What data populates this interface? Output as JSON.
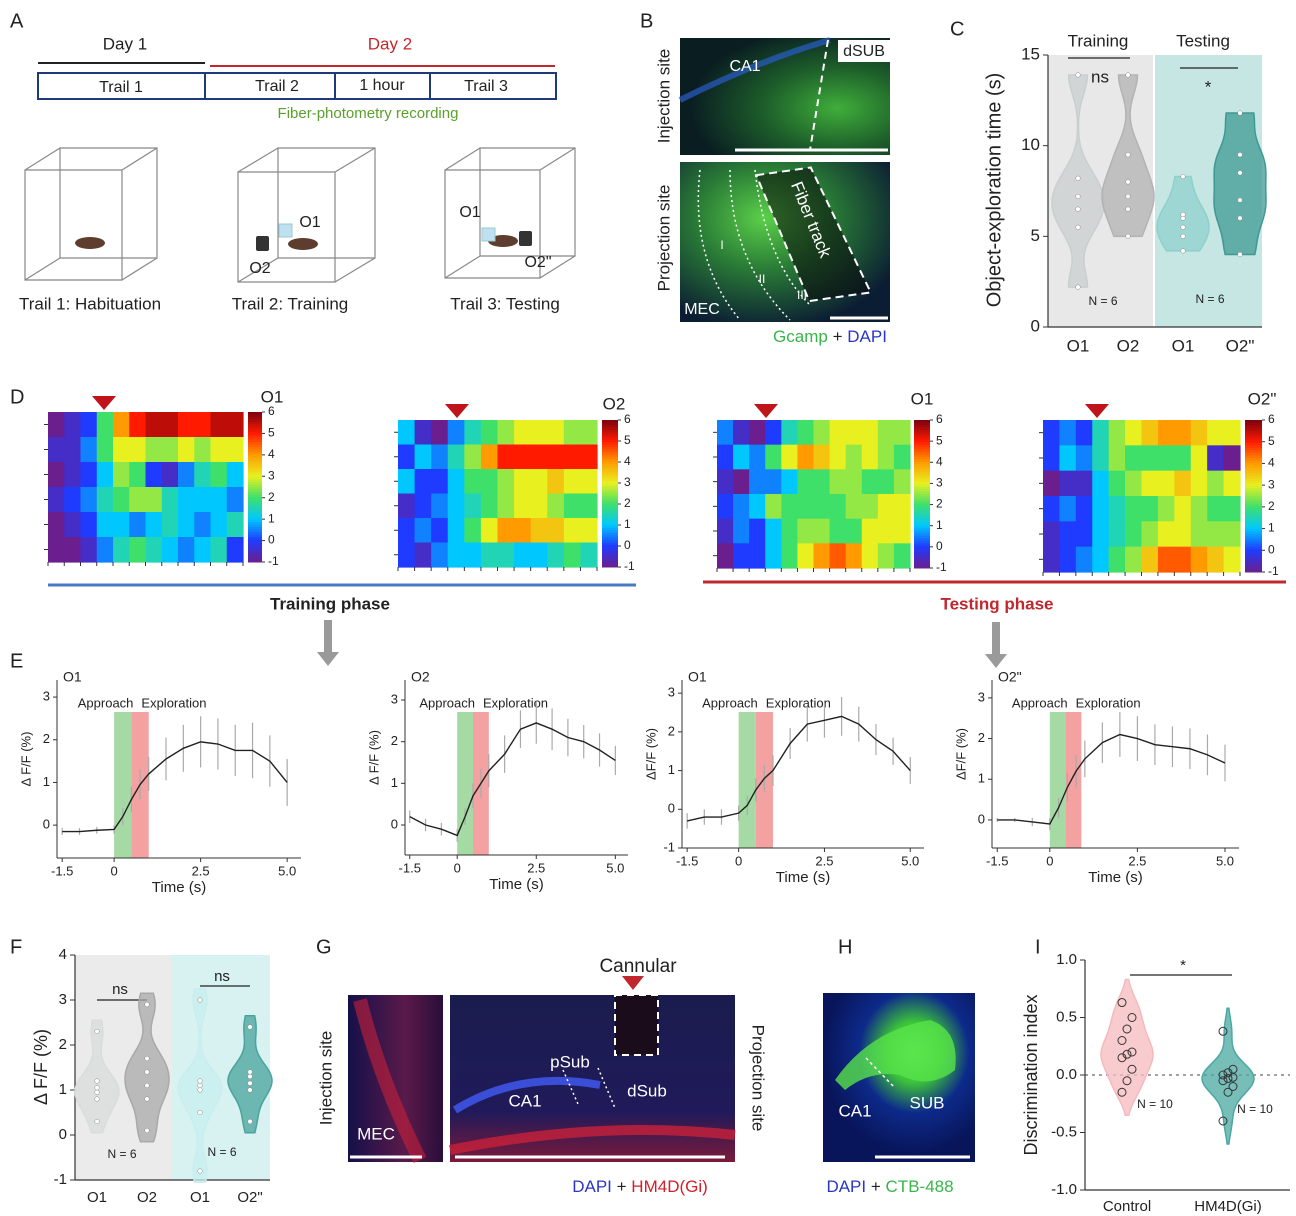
{
  "panel_letters": [
    "A",
    "B",
    "C",
    "D",
    "E",
    "F",
    "G",
    "H",
    "I"
  ],
  "panel_a": {
    "days": [
      "Day 1",
      "Day 2"
    ],
    "trials": [
      "Trail 1",
      "Trail 2",
      "1 hour",
      "Trail 3"
    ],
    "recording": "Fiber-photometry recording",
    "captions": [
      "Trail 1: Habituation",
      "Trail 2: Training",
      "Trail 3: Testing"
    ],
    "objects": [
      "O1",
      "O2",
      "O1",
      "O2\""
    ]
  },
  "panel_b": {
    "sites": [
      "Injection site",
      "Projection site"
    ],
    "regions": [
      "CA1",
      "dSUB",
      "Fiber track",
      "MEC",
      "I",
      "II",
      "III"
    ],
    "stain": [
      "Gcamp",
      "+",
      "DAPI"
    ]
  },
  "panel_d": {
    "phases": [
      "Training phase",
      "Testing phase"
    ]
  },
  "panel_g": {
    "cannula": "Cannular",
    "sites": [
      "Injection site",
      "Projection site"
    ],
    "regions": [
      "pSub",
      "CA1",
      "dSub",
      "MEC"
    ],
    "stain": [
      "DAPI",
      "+",
      "HM4D(Gi)"
    ]
  },
  "panel_h": {
    "regions": [
      "CA1",
      "SUB"
    ],
    "stain": [
      "DAPI",
      "+",
      "CTB-488"
    ]
  },
  "chart_data": [
    {
      "type": "violin",
      "ylabel": "Object-exploration time (s)",
      "groups": [
        "Training",
        "Testing"
      ],
      "categories": [
        "O1",
        "O2",
        "O1",
        "O2\""
      ],
      "values": [
        [
          2.2,
          5.5,
          6.5,
          7.2,
          8.2,
          13.9
        ],
        [
          5.0,
          6.5,
          7.2,
          8.0,
          9.5,
          13.9
        ],
        [
          4.2,
          5.0,
          5.5,
          6.0,
          6.2,
          8.3
        ],
        [
          4.0,
          6.0,
          7.0,
          8.5,
          9.5,
          11.8
        ]
      ],
      "colors": [
        "#c9cfcf",
        "#b3b3b3",
        "#8fd0cc",
        "#3f9993"
      ],
      "ylim": [
        0,
        15
      ],
      "yticks": [
        0,
        5,
        10,
        15
      ],
      "annotations": [
        "ns",
        "*"
      ],
      "n_labels": [
        "N = 6",
        "N = 6"
      ]
    },
    {
      "type": "heatmap",
      "title": "O1",
      "zlim": [
        -1,
        6
      ],
      "zticks": [
        -1,
        0,
        1,
        2,
        3,
        4,
        5,
        6
      ],
      "z": [
        [
          -1,
          -0.5,
          0,
          2,
          4,
          5,
          5.5,
          5.5,
          5,
          5,
          5.5,
          5.5
        ],
        [
          -0.5,
          -0.5,
          0.5,
          2,
          3,
          3,
          2.5,
          2.5,
          3,
          2.5,
          3,
          3
        ],
        [
          -1,
          -0.5,
          0,
          1,
          2.5,
          2,
          0,
          -0.5,
          0.5,
          1.5,
          2,
          1
        ],
        [
          -0.5,
          0,
          0.5,
          1.5,
          2,
          2.5,
          2.5,
          1.5,
          1,
          1,
          1,
          0.5
        ],
        [
          -1,
          -0.5,
          0,
          1,
          1,
          0.5,
          1,
          1.5,
          1,
          0.5,
          1,
          1.5
        ],
        [
          -1,
          -1,
          -0.5,
          0.5,
          1.5,
          2,
          1.5,
          1,
          0.5,
          1,
          1.5,
          0
        ]
      ]
    },
    {
      "type": "heatmap",
      "title": "O2",
      "zlim": [
        -1,
        6
      ],
      "zticks": [
        -1,
        0,
        1,
        2,
        3,
        4,
        5,
        6
      ],
      "z": [
        [
          1,
          -0.5,
          -1,
          0.5,
          1.5,
          2,
          2.5,
          3,
          3,
          3,
          2.5,
          2.5
        ],
        [
          0,
          1,
          0.5,
          1.5,
          2.5,
          4,
          5,
          5,
          5,
          5,
          5,
          5
        ],
        [
          1,
          0,
          0,
          1,
          2,
          2,
          2.5,
          3,
          3,
          3.5,
          3,
          3
        ],
        [
          -0.5,
          0,
          0.5,
          1,
          1.5,
          2,
          2.5,
          3,
          3,
          2.5,
          2,
          2
        ],
        [
          0,
          0.5,
          0,
          1,
          2,
          3,
          4,
          4,
          3.5,
          3.5,
          3,
          3
        ],
        [
          0,
          -0.5,
          0.5,
          1,
          1,
          1.5,
          1.5,
          1,
          1,
          1.5,
          2,
          1.5
        ]
      ]
    },
    {
      "type": "heatmap",
      "title": "O1",
      "zlim": [
        -1,
        6
      ],
      "zticks": [
        -1,
        0,
        1,
        2,
        3,
        4,
        5,
        6
      ],
      "z": [
        [
          0.5,
          -0.5,
          -1,
          0,
          1.5,
          2,
          2.5,
          3,
          3,
          3,
          2.5,
          2.5
        ],
        [
          0,
          1,
          0.5,
          2,
          3,
          4,
          3.5,
          3,
          2.5,
          3,
          2.5,
          2
        ],
        [
          -0.5,
          -1,
          0.5,
          0.5,
          1,
          2,
          2,
          2.5,
          2.5,
          2,
          2,
          2.5
        ],
        [
          0,
          0.5,
          1,
          2.5,
          2,
          2,
          2,
          2,
          2.5,
          2.5,
          3,
          3
        ],
        [
          -0.5,
          0.5,
          0,
          1,
          2,
          2.5,
          2.5,
          2,
          2,
          3,
          3,
          3
        ],
        [
          -1,
          0,
          0,
          1,
          2,
          3,
          4,
          4.5,
          4,
          3,
          2.5,
          2
        ]
      ]
    },
    {
      "type": "heatmap",
      "title": "O2\"",
      "zlim": [
        -1,
        6
      ],
      "zticks": [
        -1,
        0,
        1,
        2,
        3,
        4,
        5,
        6
      ],
      "z": [
        [
          0,
          0.5,
          0,
          1.5,
          2.5,
          3,
          3.5,
          4,
          4,
          3.5,
          3,
          3
        ],
        [
          0,
          1,
          0.5,
          1.5,
          2.5,
          2,
          2,
          2,
          2,
          3,
          -0.5,
          -1
        ],
        [
          -1,
          -0.5,
          -0.5,
          1,
          2,
          2.5,
          3,
          3,
          3.5,
          3,
          2.5,
          3
        ],
        [
          0,
          0.5,
          0,
          1,
          1.5,
          2,
          2,
          2.5,
          3,
          2.5,
          2,
          2
        ],
        [
          -0.5,
          0,
          0,
          1,
          1.5,
          2,
          2.5,
          3,
          3,
          2.5,
          2.5,
          2.5
        ],
        [
          -0.5,
          0,
          0.5,
          1,
          2,
          2.5,
          3.5,
          4.5,
          4.5,
          4,
          3.5,
          3
        ]
      ]
    },
    {
      "type": "line",
      "title": "O1",
      "xlabel": "Time (s)",
      "ylabel": "Δ F/F (%)",
      "color": "#222222",
      "error_color": "#aaaaaa",
      "x": [
        -1.5,
        -1,
        -0.5,
        0,
        0.25,
        0.5,
        0.75,
        1,
        1.5,
        2,
        2.5,
        3,
        3.5,
        4,
        4.5,
        5
      ],
      "values": [
        -0.15,
        -0.15,
        -0.12,
        -0.1,
        0.2,
        0.6,
        0.95,
        1.2,
        1.55,
        1.8,
        1.95,
        1.9,
        1.75,
        1.75,
        1.5,
        1.0
      ],
      "errors": [
        0.08,
        0.08,
        0.08,
        0.1,
        0.2,
        0.3,
        0.35,
        0.4,
        0.5,
        0.55,
        0.6,
        0.6,
        0.6,
        0.65,
        0.6,
        0.55
      ],
      "spans": [
        {
          "name": "Approach",
          "range": [
            0,
            0.5
          ],
          "color": "#8fd18f"
        },
        {
          "name": "Exploration",
          "range": [
            0.5,
            1.0
          ],
          "color": "#f08a8a"
        }
      ],
      "xlim": [
        -1.65,
        5.4
      ],
      "xticks": [
        -1.5,
        0,
        2.5,
        {
          "value": 5,
          "label": "5.0"
        }
      ],
      "ylim": [
        -0.77,
        3.4
      ],
      "yticks": [
        0,
        1,
        2,
        3
      ]
    },
    {
      "type": "line",
      "title": "O2",
      "xlabel": "Time (s)",
      "ylabel": "Δ F/F (%)",
      "color": "#222222",
      "error_color": "#aaaaaa",
      "x": [
        -1.5,
        -1,
        -0.5,
        0,
        0.25,
        0.5,
        0.75,
        1,
        1.5,
        2,
        2.5,
        3,
        3.5,
        4,
        4.5,
        5
      ],
      "values": [
        0.2,
        0.0,
        -0.1,
        -0.25,
        0.2,
        0.7,
        1.0,
        1.3,
        1.7,
        2.3,
        2.45,
        2.3,
        2.1,
        2.0,
        1.8,
        1.55
      ],
      "errors": [
        0.15,
        0.15,
        0.15,
        0.15,
        0.2,
        0.3,
        0.35,
        0.4,
        0.45,
        0.45,
        0.5,
        0.5,
        0.45,
        0.4,
        0.4,
        0.35
      ],
      "spans": [
        {
          "name": "Approach",
          "range": [
            0,
            0.5
          ],
          "color": "#8fd18f"
        },
        {
          "name": "Exploration",
          "range": [
            0.5,
            1.0
          ],
          "color": "#f08a8a"
        }
      ],
      "xlim": [
        -1.65,
        5.4
      ],
      "xticks": [
        -1.5,
        0,
        2.5,
        {
          "value": 5,
          "label": "5.0"
        }
      ],
      "ylim": [
        -0.72,
        3.48
      ],
      "yticks": [
        0,
        1,
        2,
        3
      ]
    },
    {
      "type": "line",
      "title": "O1",
      "xlabel": "Time (s)",
      "ylabel": "ΔF/F (%)",
      "color": "#222222",
      "error_color": "#aaaaaa",
      "x": [
        -1.5,
        -1,
        -0.5,
        0,
        0.25,
        0.5,
        0.75,
        1,
        1.5,
        2,
        2.5,
        3,
        3.5,
        4,
        4.5,
        5
      ],
      "values": [
        -0.3,
        -0.2,
        -0.2,
        -0.1,
        0.1,
        0.5,
        0.8,
        1.0,
        1.7,
        2.2,
        2.3,
        2.4,
        2.2,
        1.8,
        1.5,
        1.0
      ],
      "errors": [
        0.2,
        0.2,
        0.2,
        0.2,
        0.25,
        0.3,
        0.35,
        0.4,
        0.4,
        0.45,
        0.45,
        0.5,
        0.45,
        0.4,
        0.35,
        0.35
      ],
      "spans": [
        {
          "name": "Approach",
          "range": [
            0,
            0.5
          ],
          "color": "#8fd18f"
        },
        {
          "name": "Exploration",
          "range": [
            0.5,
            1.0
          ],
          "color": "#f08a8a"
        }
      ],
      "xlim": [
        -1.65,
        5.4
      ],
      "xticks": [
        -1.5,
        0,
        2.5,
        {
          "value": 5,
          "label": "5.0"
        }
      ],
      "ylim": [
        -1,
        3.34
      ],
      "yticks": [
        -1,
        0,
        1,
        2,
        3
      ]
    },
    {
      "type": "line",
      "title": "O2\"",
      "xlabel": "Time (s)",
      "ylabel": "ΔF/F (%)",
      "color": "#222222",
      "error_color": "#aaaaaa",
      "x": [
        -1.5,
        -1,
        -0.5,
        0,
        0.25,
        0.5,
        0.75,
        1,
        1.5,
        2,
        2.5,
        3,
        3.5,
        4,
        4.5,
        5
      ],
      "values": [
        0.0,
        0.0,
        -0.05,
        -0.1,
        0.3,
        0.8,
        1.2,
        1.5,
        1.9,
        2.1,
        2.0,
        1.85,
        1.8,
        1.75,
        1.6,
        1.4
      ],
      "errors": [
        0.05,
        0.05,
        0.1,
        0.15,
        0.25,
        0.35,
        0.4,
        0.45,
        0.5,
        0.55,
        0.55,
        0.5,
        0.5,
        0.5,
        0.5,
        0.45
      ],
      "spans": [
        {
          "name": "Approach",
          "range": [
            0,
            0.45
          ],
          "color": "#8fd18f"
        },
        {
          "name": "Exploration",
          "range": [
            0.45,
            0.9
          ],
          "color": "#f08a8a"
        }
      ],
      "xlim": [
        -1.65,
        5.4
      ],
      "xticks": [
        -1.5,
        0,
        2.5,
        {
          "value": 5,
          "label": "5.0"
        }
      ],
      "ylim": [
        -0.69,
        3.44
      ],
      "yticks": [
        0,
        1,
        2,
        3
      ]
    },
    {
      "type": "violin",
      "ylabel": "Δ F/F (%)",
      "categories": [
        "O1",
        "O2",
        "O1",
        "O2\""
      ],
      "values": [
        [
          0.3,
          0.8,
          0.95,
          1.05,
          1.2,
          2.3
        ],
        [
          0.1,
          0.8,
          1.1,
          1.4,
          1.7,
          2.9
        ],
        [
          -0.8,
          0.5,
          1.0,
          1.1,
          1.2,
          3.0
        ],
        [
          0.3,
          1.0,
          1.15,
          1.3,
          1.4,
          2.4
        ]
      ],
      "colors": [
        "#d9dcdc",
        "#a9a9a9",
        "#c8eeee",
        "#4aa39c"
      ],
      "ylim": [
        -1,
        4
      ],
      "yticks": [
        -1,
        0,
        1,
        2,
        3,
        4
      ],
      "annotations": [
        "ns",
        "ns"
      ],
      "n_labels": [
        "N = 6",
        "N = 6"
      ]
    },
    {
      "type": "violin",
      "ylabel": "Discrimination index",
      "categories": [
        "Control",
        "HM4D(Gi)"
      ],
      "values": [
        [
          -0.15,
          -0.05,
          0.05,
          0.15,
          0.18,
          0.2,
          0.3,
          0.4,
          0.5,
          0.63
        ],
        [
          -0.4,
          -0.15,
          -0.1,
          -0.05,
          -0.03,
          -0.02,
          0,
          0.02,
          0.05,
          0.38
        ]
      ],
      "colors": [
        "#f5b9bd",
        "#4aa8a2"
      ],
      "ylim": [
        -1,
        1
      ],
      "yticks": [
        {
          "value": -1,
          "label": "-1.0"
        },
        -0.5,
        {
          "value": 0,
          "label": "0.0"
        },
        0.5,
        {
          "value": 1,
          "label": "1.0"
        }
      ],
      "ref_line": 0,
      "show_points": true,
      "annotations": [
        "*"
      ],
      "n_labels": [
        "N = 10",
        "N = 10"
      ]
    }
  ]
}
